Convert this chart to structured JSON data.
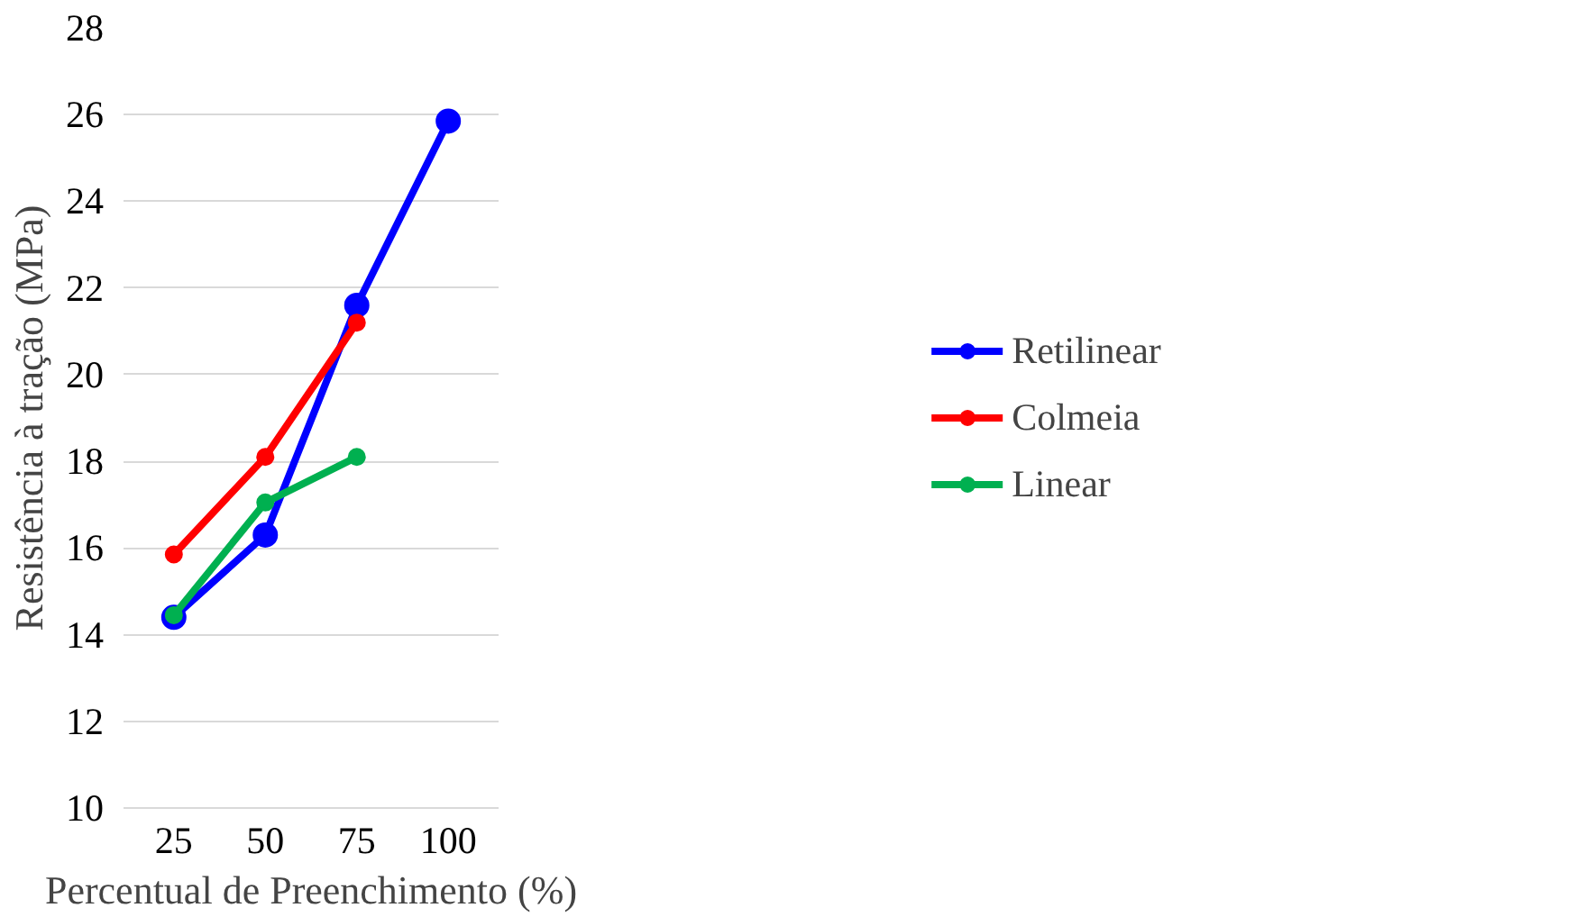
{
  "chart_data": {
    "type": "line",
    "xlabel": "Percentual de Preenchimento (%)",
    "ylabel": "Resistência à tração (MPa)",
    "categories": [
      "25",
      "50",
      "75",
      "100"
    ],
    "series": [
      {
        "name": "Retilinear",
        "color": "#0000ff",
        "values": [
          14.4,
          16.3,
          21.6,
          25.85
        ]
      },
      {
        "name": "Colmeia",
        "color": "#ff0000",
        "values": [
          15.85,
          18.1,
          21.2,
          null
        ]
      },
      {
        "name": "Linear",
        "color": "#00b050",
        "values": [
          14.45,
          17.05,
          18.1,
          null
        ]
      }
    ],
    "ylim": [
      10,
      28
    ],
    "yticks": [
      10,
      12,
      14,
      16,
      18,
      20,
      22,
      24,
      26,
      28
    ],
    "grid": "y",
    "legend": "right",
    "marker": "circle",
    "line_style": "solid"
  }
}
